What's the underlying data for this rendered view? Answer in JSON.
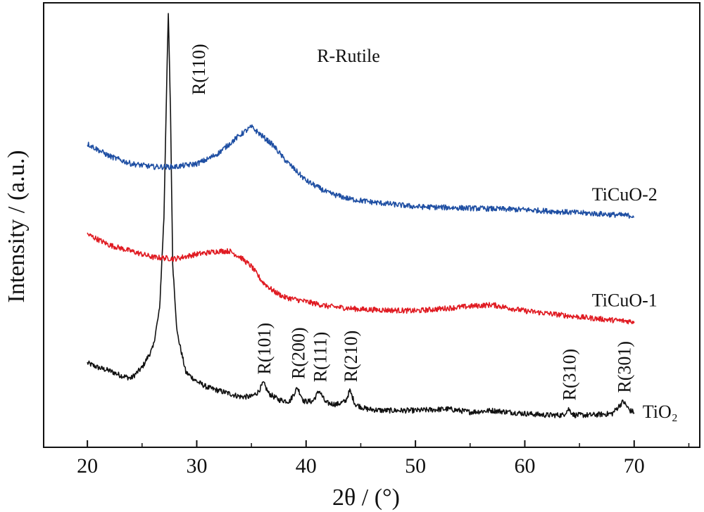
{
  "chart_data": {
    "type": "line",
    "title": "",
    "xlabel": "2θ / (°)",
    "ylabel": "Intensity / (a.u.)",
    "xlim": [
      16,
      76
    ],
    "ylim": [
      0,
      2.9
    ],
    "x_ticks": [
      20,
      30,
      40,
      50,
      60,
      70
    ],
    "y_ticks_shown": false,
    "grid": false,
    "legend": "none",
    "inline_note": "R-Rutile",
    "peak_labels": [
      {
        "label": "R(110)",
        "x": 27.4
      },
      {
        "label": "R(101)",
        "x": 36.1
      },
      {
        "label": "R(200)",
        "x": 39.2
      },
      {
        "label": "R(111)",
        "x": 41.2
      },
      {
        "label": "R(210)",
        "x": 44.0
      },
      {
        "label": "R(310)",
        "x": 64.0
      },
      {
        "label": "R(301)",
        "x": 69.0
      }
    ],
    "series": [
      {
        "name": "TiO₂",
        "color": "#111111",
        "x": [
          20,
          21,
          22,
          23,
          24,
          25,
          26,
          26.6,
          27.0,
          27.2,
          27.4,
          27.6,
          27.8,
          28.2,
          29,
          30,
          31,
          32,
          33,
          34,
          35,
          35.6,
          36.1,
          36.6,
          37.5,
          38.5,
          39.2,
          39.8,
          40.6,
          41.2,
          41.8,
          42.8,
          43.6,
          44.0,
          44.5,
          45.5,
          47,
          50,
          53,
          55,
          57,
          60,
          62,
          63.5,
          64.0,
          64.5,
          66,
          68,
          69.0,
          69.6,
          70
        ],
        "values": [
          0.55,
          0.52,
          0.5,
          0.47,
          0.45,
          0.52,
          0.65,
          0.9,
          1.5,
          2.2,
          2.83,
          2.2,
          1.2,
          0.75,
          0.49,
          0.43,
          0.39,
          0.37,
          0.35,
          0.33,
          0.33,
          0.36,
          0.42,
          0.35,
          0.31,
          0.3,
          0.39,
          0.3,
          0.3,
          0.37,
          0.29,
          0.28,
          0.3,
          0.37,
          0.28,
          0.25,
          0.24,
          0.24,
          0.25,
          0.23,
          0.24,
          0.22,
          0.21,
          0.21,
          0.25,
          0.21,
          0.21,
          0.22,
          0.3,
          0.24,
          0.23
        ]
      },
      {
        "name": "TiCuO-1",
        "color": "#e01b22",
        "x": [
          20,
          22,
          24,
          26,
          28,
          30,
          32,
          33,
          34,
          35,
          36,
          37,
          38,
          40,
          42,
          45,
          50,
          55,
          57,
          60,
          65,
          68,
          70
        ],
        "values": [
          1.39,
          1.32,
          1.28,
          1.24,
          1.23,
          1.26,
          1.28,
          1.28,
          1.24,
          1.18,
          1.08,
          1.02,
          0.98,
          0.95,
          0.92,
          0.9,
          0.89,
          0.92,
          0.93,
          0.89,
          0.85,
          0.83,
          0.82
        ]
      },
      {
        "name": "TiCuO-2",
        "color": "#1f4fa3",
        "x": [
          20,
          22,
          24,
          26,
          28,
          30,
          31,
          32,
          33,
          34,
          35,
          36,
          37,
          38,
          39,
          40,
          42,
          44,
          46,
          50,
          55,
          60,
          65,
          70
        ],
        "values": [
          1.98,
          1.9,
          1.85,
          1.83,
          1.83,
          1.85,
          1.88,
          1.92,
          1.98,
          2.04,
          2.09,
          2.03,
          1.97,
          1.88,
          1.81,
          1.74,
          1.66,
          1.62,
          1.6,
          1.57,
          1.56,
          1.55,
          1.53,
          1.51
        ]
      }
    ]
  }
}
